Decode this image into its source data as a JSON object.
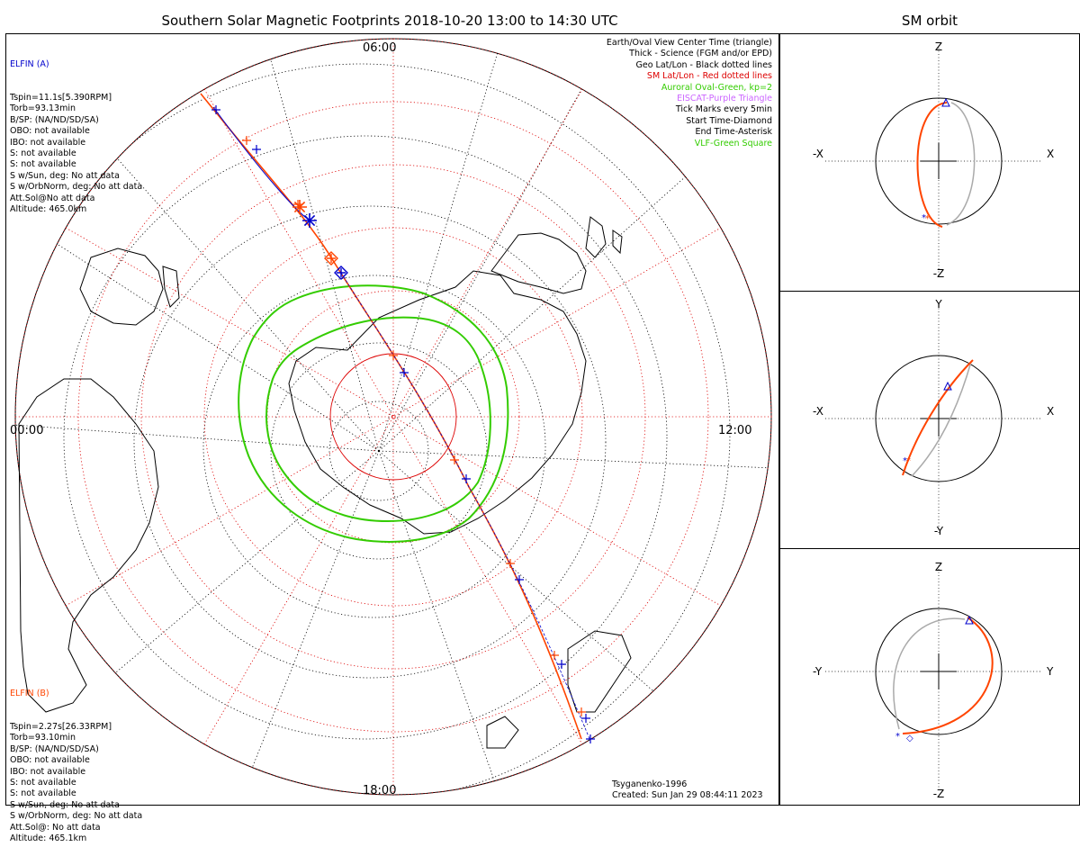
{
  "main_title": "Southern Solar Magnetic Footprints 2018-10-20 13:00 to 14:30 UTC",
  "side_title": "SM orbit",
  "elfin_a": {
    "name": "ELFIN (A)",
    "lines": [
      "Tspin=11.1s[5.390RPM]",
      "Torb=93.13min",
      "B/SP: (NA/ND/SD/SA)",
      "OBO: not available",
      "IBO: not available",
      "S: not available",
      "S: not available",
      "S w/Sun, deg: No att data",
      "S w/OrbNorm, deg: No att data",
      "Att.Sol@No att data",
      "Altitude: 465.0km"
    ],
    "color": "#0000cc"
  },
  "elfin_b": {
    "name": "ELFIN (B)",
    "lines": [
      "Tspin=2.27s[26.33RPM]",
      "Torb=93.10min",
      "B/SP: (NA/ND/SD/SA)",
      "OBO: not available",
      "IBO: not available",
      "S: not available",
      "S: not available",
      "S w/Sun, deg: No att data",
      "S w/OrbNorm, deg: No att data",
      "Att.Sol@: No att data",
      "Altitude: 465.1km"
    ],
    "color": "#ff4400"
  },
  "legend": [
    {
      "text": "Earth/Oval View Center Time (triangle)",
      "color": "#000000"
    },
    {
      "text": "Thick - Science (FGM and/or EPD)",
      "color": "#000000"
    },
    {
      "text": "Geo Lat/Lon - Black dotted lines",
      "color": "#000000"
    },
    {
      "text": "SM Lat/Lon - Red dotted lines",
      "color": "#dd0000"
    },
    {
      "text": "Auroral Oval-Green, kp=2",
      "color": "#33cc00"
    },
    {
      "text": "EISCAT-Purple Triangle",
      "color": "#cc66ff"
    },
    {
      "text": "Tick Marks every 5min",
      "color": "#000000"
    },
    {
      "text": "Start Time-Diamond",
      "color": "#000000"
    },
    {
      "text": "End Time-Asterisk",
      "color": "#000000"
    },
    {
      "text": "VLF-Green Square",
      "color": "#33cc00"
    }
  ],
  "time_labels": {
    "top": "06:00",
    "left": "00:00",
    "right": "12:00",
    "bottom": "18:00"
  },
  "footer": {
    "model": "Tsyganenko-1996",
    "created": "Created: Sun Jan 29 08:44:11 2023"
  },
  "orbit_panels": [
    {
      "top": "Z",
      "bottom": "-Z",
      "left": "-X",
      "right": "X"
    },
    {
      "top": "Y",
      "bottom": "-Y",
      "left": "-X",
      "right": "X"
    },
    {
      "top": "Z",
      "bottom": "-Z",
      "left": "-Y",
      "right": "Y"
    }
  ],
  "colors": {
    "elfin_a": "#0000cc",
    "elfin_b": "#ff4400",
    "sm_grid": "#dd0000",
    "oval": "#33cc00",
    "geo_grid": "#000000",
    "orbit_shadow": "#aaaaaa"
  }
}
